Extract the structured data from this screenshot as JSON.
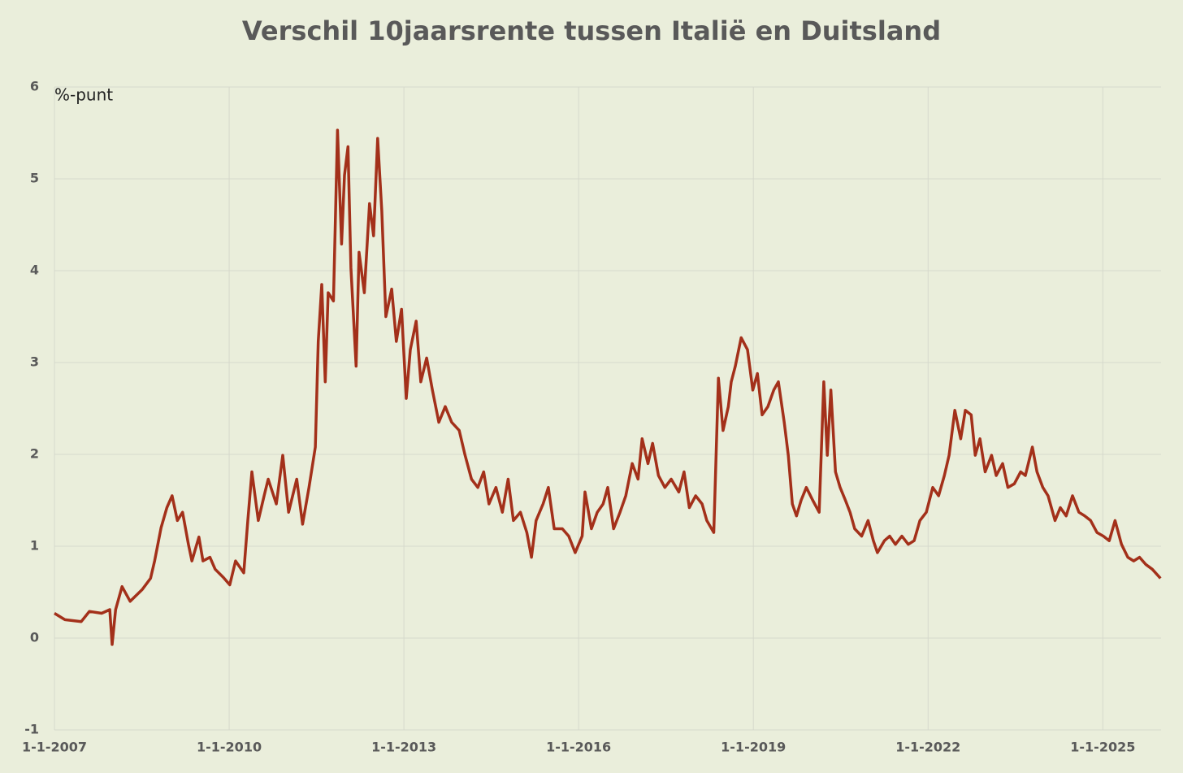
{
  "chart_data": {
    "type": "line",
    "title": "Verschil 10jaarsrente tussen Italië en Duitsland",
    "y_label": "%-punt",
    "color": "#a3301a",
    "grid": true,
    "x": [
      2007.0,
      2007.18,
      2007.46,
      2007.6,
      2007.81,
      2007.95,
      2007.99,
      2008.05,
      2008.16,
      2008.3,
      2008.51,
      2008.65,
      2008.72,
      2008.83,
      2008.93,
      2009.02,
      2009.11,
      2009.2,
      2009.3,
      2009.36,
      2009.48,
      2009.55,
      2009.67,
      2009.76,
      2009.9,
      2010.01,
      2010.11,
      2010.25,
      2010.32,
      2010.39,
      2010.5,
      2010.6,
      2010.67,
      2010.81,
      2010.92,
      2011.02,
      2011.16,
      2011.26,
      2011.37,
      2011.48,
      2011.53,
      2011.59,
      2011.65,
      2011.7,
      2011.79,
      2011.86,
      2011.93,
      2011.98,
      2012.04,
      2012.09,
      2012.18,
      2012.23,
      2012.32,
      2012.41,
      2012.48,
      2012.55,
      2012.62,
      2012.69,
      2012.79,
      2012.87,
      2012.96,
      2013.04,
      2013.11,
      2013.21,
      2013.29,
      2013.39,
      2013.49,
      2013.6,
      2013.71,
      2013.82,
      2013.95,
      2014.05,
      2014.16,
      2014.27,
      2014.37,
      2014.46,
      2014.58,
      2014.69,
      2014.79,
      2014.88,
      2015.0,
      2015.11,
      2015.19,
      2015.27,
      2015.39,
      2015.48,
      2015.58,
      2015.72,
      2015.83,
      2015.94,
      2016.06,
      2016.11,
      2016.22,
      2016.32,
      2016.42,
      2016.5,
      2016.6,
      2016.71,
      2016.81,
      2016.92,
      2017.02,
      2017.09,
      2017.19,
      2017.27,
      2017.37,
      2017.48,
      2017.59,
      2017.72,
      2017.81,
      2017.9,
      2018.01,
      2018.12,
      2018.2,
      2018.32,
      2018.4,
      2018.48,
      2018.57,
      2018.62,
      2018.69,
      2018.79,
      2018.9,
      2018.99,
      2019.07,
      2019.15,
      2019.25,
      2019.35,
      2019.43,
      2019.53,
      2019.6,
      2019.67,
      2019.74,
      2019.82,
      2019.91,
      2020.02,
      2020.13,
      2020.21,
      2020.27,
      2020.33,
      2020.41,
      2020.49,
      2020.58,
      2020.66,
      2020.74,
      2020.86,
      2020.97,
      2021.06,
      2021.13,
      2021.25,
      2021.34,
      2021.44,
      2021.55,
      2021.66,
      2021.76,
      2021.86,
      2021.97,
      2022.08,
      2022.18,
      2022.28,
      2022.36,
      2022.46,
      2022.56,
      2022.64,
      2022.74,
      2022.81,
      2022.89,
      2022.98,
      2023.09,
      2023.17,
      2023.28,
      2023.37,
      2023.48,
      2023.59,
      2023.67,
      2023.79,
      2023.87,
      2023.97,
      2024.06,
      2024.18,
      2024.27,
      2024.37,
      2024.48,
      2024.59,
      2024.69,
      2024.79,
      2024.9,
      2025.01,
      2025.11,
      2025.21,
      2025.32,
      2025.43,
      2025.53,
      2025.63,
      2025.74,
      2025.85,
      2025.99
    ],
    "values": [
      0.27,
      0.2,
      0.18,
      0.29,
      0.27,
      0.31,
      -0.07,
      0.31,
      0.56,
      0.4,
      0.53,
      0.65,
      0.84,
      1.2,
      1.42,
      1.55,
      1.28,
      1.37,
      1.02,
      0.84,
      1.1,
      0.84,
      0.88,
      0.75,
      0.66,
      0.58,
      0.84,
      0.71,
      1.28,
      1.81,
      1.28,
      1.55,
      1.73,
      1.46,
      1.99,
      1.37,
      1.73,
      1.24,
      1.64,
      2.08,
      3.23,
      3.85,
      2.79,
      3.76,
      3.67,
      5.53,
      4.29,
      5.04,
      5.35,
      4.03,
      2.96,
      4.2,
      3.76,
      4.73,
      4.38,
      5.44,
      4.65,
      3.5,
      3.8,
      3.23,
      3.58,
      2.61,
      3.14,
      3.45,
      2.79,
      3.05,
      2.7,
      2.35,
      2.52,
      2.35,
      2.26,
      1.99,
      1.73,
      1.64,
      1.81,
      1.46,
      1.64,
      1.37,
      1.73,
      1.28,
      1.37,
      1.15,
      0.88,
      1.28,
      1.46,
      1.64,
      1.19,
      1.19,
      1.11,
      0.93,
      1.11,
      1.59,
      1.19,
      1.37,
      1.46,
      1.64,
      1.19,
      1.37,
      1.55,
      1.9,
      1.73,
      2.17,
      1.9,
      2.12,
      1.77,
      1.64,
      1.73,
      1.59,
      1.81,
      1.42,
      1.55,
      1.46,
      1.28,
      1.15,
      2.83,
      2.26,
      2.52,
      2.79,
      2.96,
      3.27,
      3.14,
      2.7,
      2.88,
      2.43,
      2.52,
      2.7,
      2.79,
      2.35,
      1.99,
      1.46,
      1.33,
      1.5,
      1.64,
      1.5,
      1.37,
      2.79,
      1.99,
      2.7,
      1.81,
      1.64,
      1.5,
      1.37,
      1.19,
      1.11,
      1.28,
      1.06,
      0.93,
      1.06,
      1.11,
      1.02,
      1.11,
      1.02,
      1.06,
      1.28,
      1.37,
      1.64,
      1.55,
      1.77,
      1.99,
      2.48,
      2.17,
      2.48,
      2.43,
      1.99,
      2.17,
      1.81,
      1.99,
      1.77,
      1.9,
      1.64,
      1.68,
      1.81,
      1.77,
      2.08,
      1.81,
      1.64,
      1.55,
      1.28,
      1.42,
      1.33,
      1.55,
      1.37,
      1.33,
      1.28,
      1.15,
      1.11,
      1.06,
      1.28,
      1.02,
      0.88,
      0.84,
      0.88,
      0.8,
      0.75,
      0.65
    ],
    "xlim": [
      2007,
      2026
    ],
    "xticks": [
      {
        "value": 2007,
        "label": "1-1-2007"
      },
      {
        "value": 2010,
        "label": "1-1-2010"
      },
      {
        "value": 2013,
        "label": "1-1-2013"
      },
      {
        "value": 2016,
        "label": "1-1-2016"
      },
      {
        "value": 2019,
        "label": "1-1-2019"
      },
      {
        "value": 2022,
        "label": "1-1-2022"
      },
      {
        "value": 2025,
        "label": "1-1-2025"
      }
    ],
    "ylim": [
      -1,
      6
    ],
    "yticks": [
      -1,
      0,
      1,
      2,
      3,
      4,
      5,
      6
    ]
  }
}
